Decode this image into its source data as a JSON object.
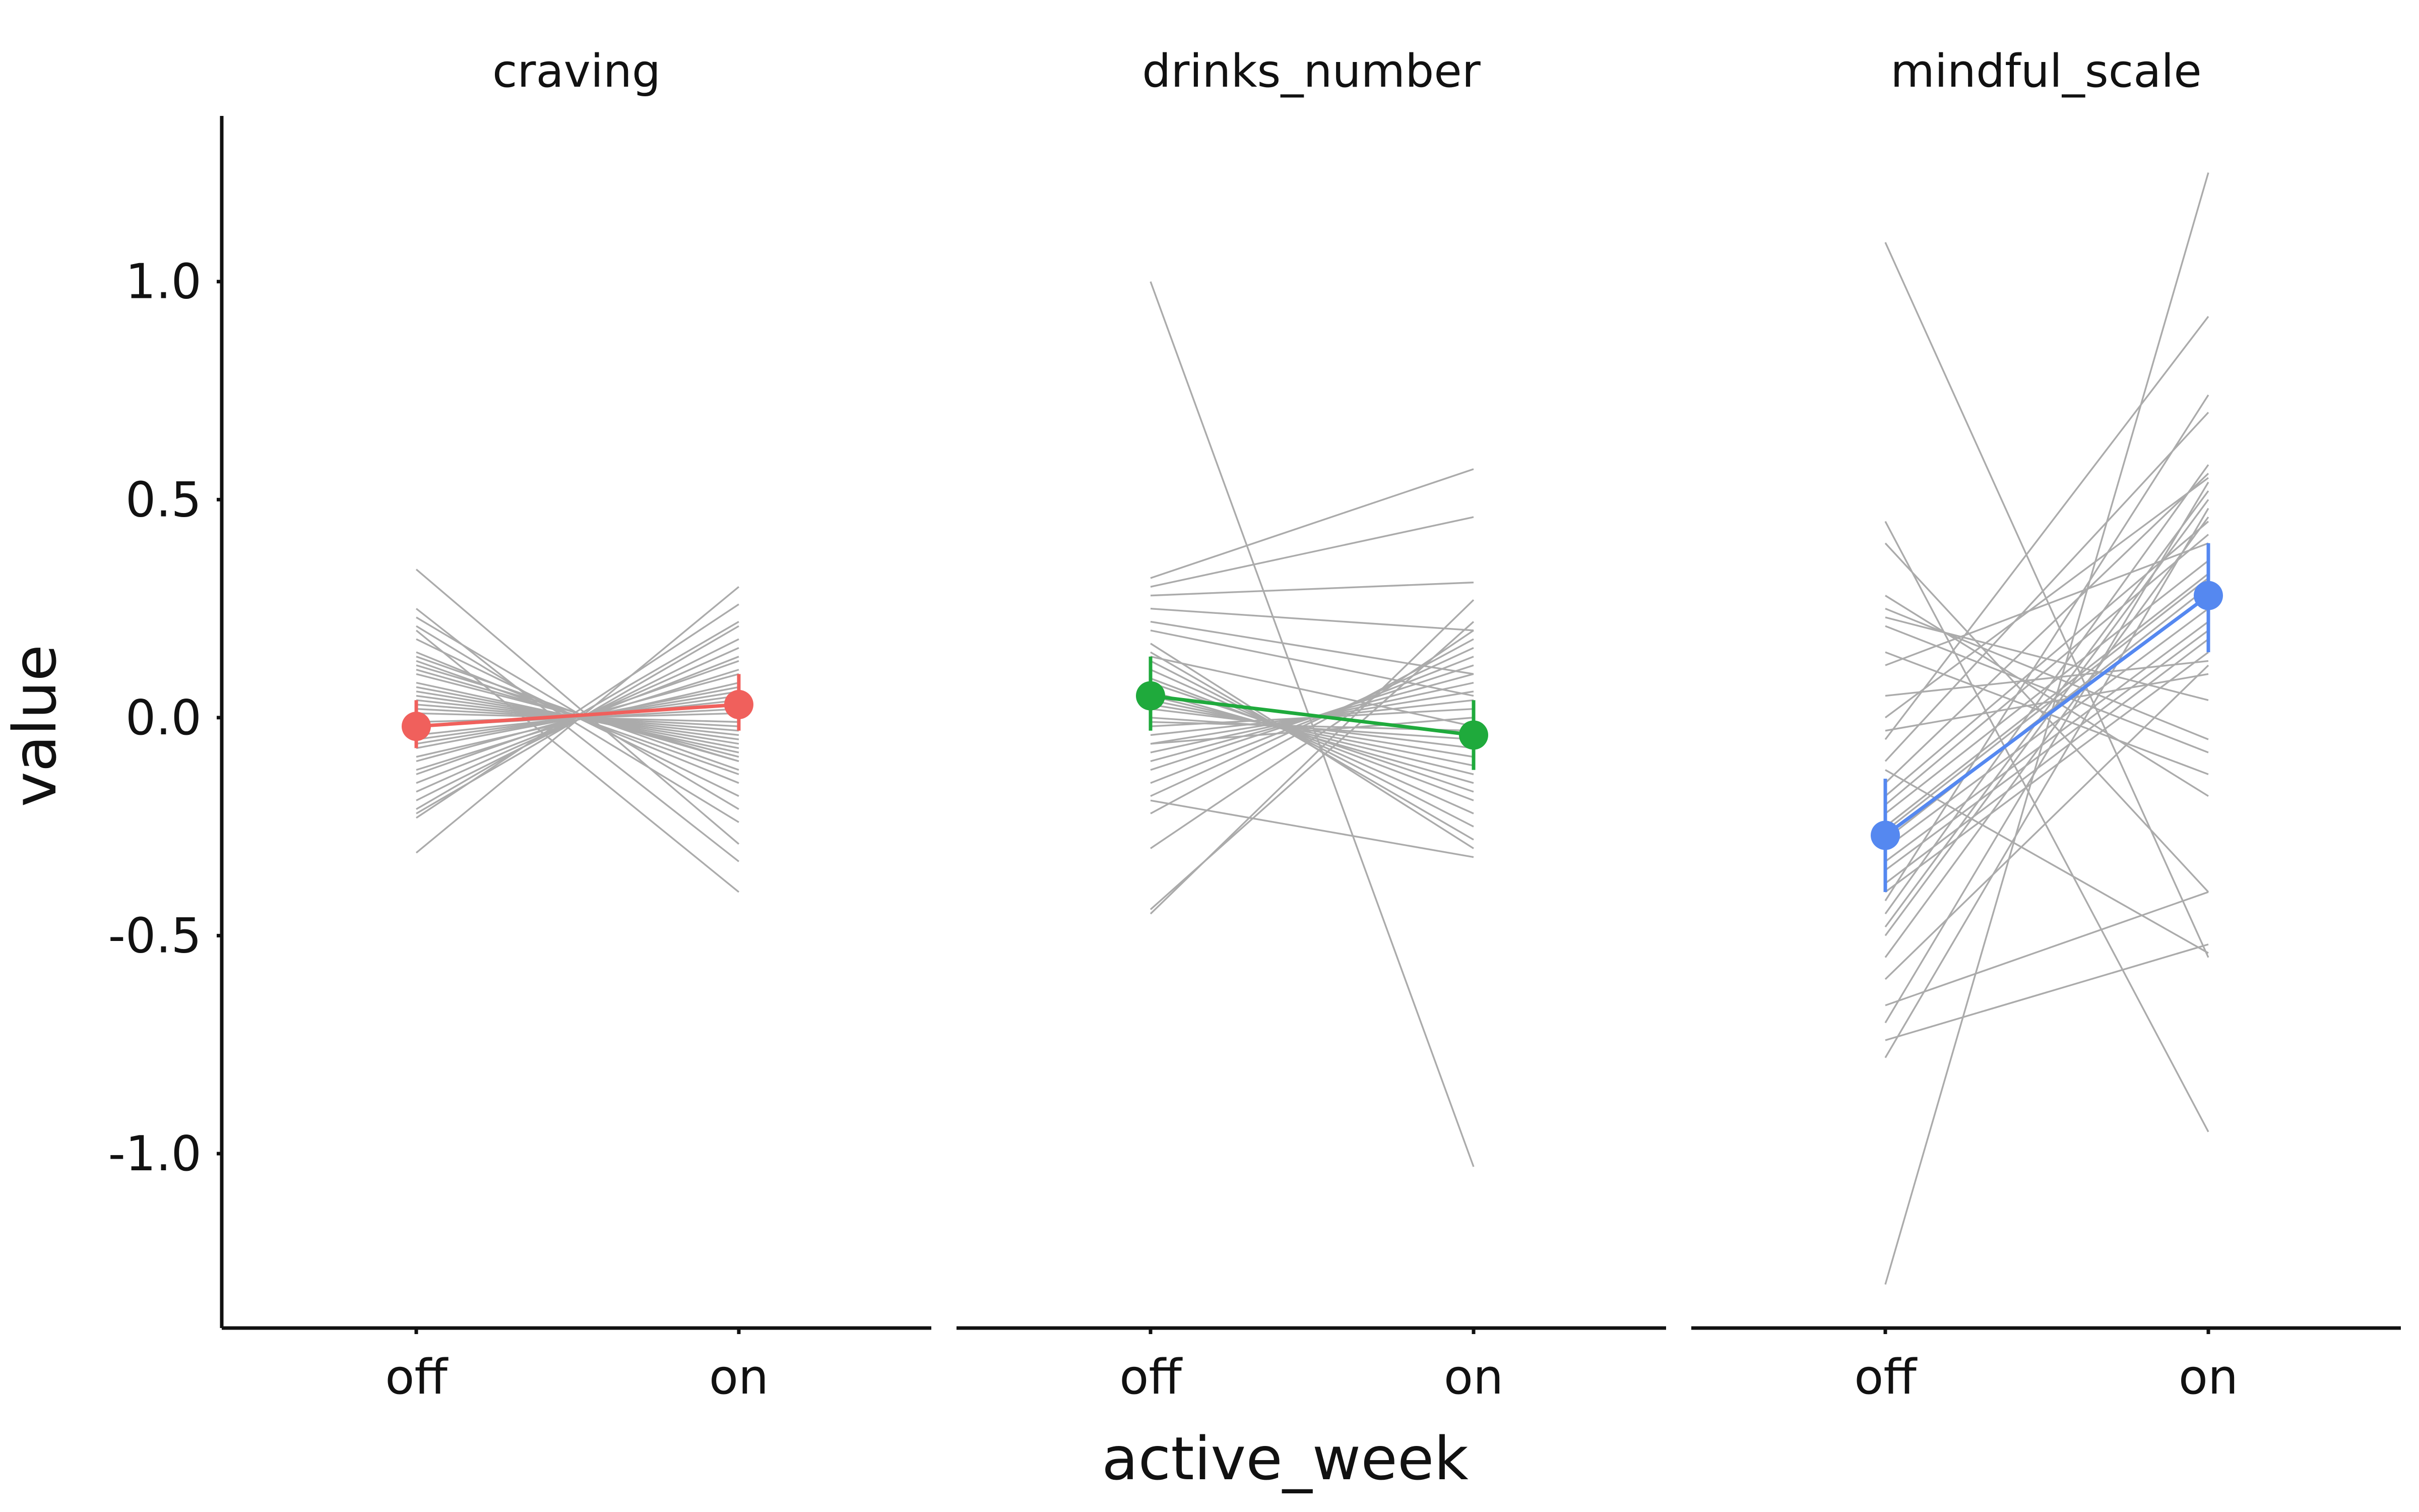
{
  "chart_data": {
    "type": "line",
    "xlabel": "active_week",
    "ylabel": "value",
    "x_categories": [
      "off",
      "on"
    ],
    "ylim": [
      -1.4,
      1.38
    ],
    "yticks": [
      -1.0,
      -0.5,
      0.0,
      0.5,
      1.0
    ],
    "ytick_labels": [
      "-1.0",
      "-0.5",
      "0.0",
      "0.5",
      "1.0"
    ],
    "subject_line_color": "#ababab",
    "facets": [
      {
        "title": "craving",
        "color": "#f0605c",
        "mean": {
          "off": -0.02,
          "on": 0.03
        },
        "ci": {
          "off": [
            -0.07,
            0.04
          ],
          "on": [
            -0.03,
            0.1
          ]
        },
        "subjects": [
          [
            0.34,
            -0.29
          ],
          [
            0.25,
            -0.33
          ],
          [
            0.23,
            -0.21
          ],
          [
            0.21,
            -0.24
          ],
          [
            0.18,
            -0.18
          ],
          [
            0.15,
            -0.15
          ],
          [
            0.14,
            -0.12
          ],
          [
            0.13,
            -0.13
          ],
          [
            0.12,
            -0.1
          ],
          [
            0.11,
            -0.1
          ],
          [
            0.1,
            -0.09
          ],
          [
            0.08,
            -0.08
          ],
          [
            0.07,
            -0.07
          ],
          [
            0.06,
            -0.06
          ],
          [
            0.05,
            -0.05
          ],
          [
            0.04,
            -0.04
          ],
          [
            0.03,
            -0.03
          ],
          [
            0.02,
            -0.02
          ],
          [
            0.01,
            -0.01
          ],
          [
            -0.01,
            0.01
          ],
          [
            -0.02,
            0.02
          ],
          [
            -0.04,
            0.04
          ],
          [
            -0.05,
            0.05
          ],
          [
            -0.06,
            0.06
          ],
          [
            -0.07,
            0.07
          ],
          [
            -0.09,
            0.08
          ],
          [
            -0.1,
            0.1
          ],
          [
            -0.12,
            0.11
          ],
          [
            -0.13,
            0.13
          ],
          [
            -0.15,
            0.14
          ],
          [
            -0.17,
            0.16
          ],
          [
            -0.19,
            0.18
          ],
          [
            -0.21,
            0.22
          ],
          [
            -0.23,
            0.26
          ],
          [
            -0.31,
            0.3
          ],
          [
            -0.22,
            0.21
          ],
          [
            0.2,
            -0.4
          ]
        ]
      },
      {
        "title": "drinks_number",
        "color": "#1faa3c",
        "mean": {
          "off": 0.05,
          "on": -0.04
        },
        "ci": {
          "off": [
            -0.03,
            0.14
          ],
          "on": [
            -0.12,
            0.04
          ]
        },
        "subjects": [
          [
            1.0,
            -1.03
          ],
          [
            0.32,
            0.57
          ],
          [
            0.3,
            0.46
          ],
          [
            0.28,
            0.31
          ],
          [
            0.25,
            0.2
          ],
          [
            0.22,
            0.1
          ],
          [
            0.2,
            0.05
          ],
          [
            0.17,
            -0.3
          ],
          [
            0.15,
            -0.28
          ],
          [
            0.13,
            -0.25
          ],
          [
            0.11,
            -0.22
          ],
          [
            0.09,
            -0.19
          ],
          [
            0.08,
            -0.17
          ],
          [
            0.06,
            -0.15
          ],
          [
            0.05,
            -0.13
          ],
          [
            0.04,
            -0.11
          ],
          [
            0.03,
            -0.09
          ],
          [
            0.02,
            -0.07
          ],
          [
            0.0,
            -0.05
          ],
          [
            -0.01,
            -0.03
          ],
          [
            -0.02,
            0.02
          ],
          [
            -0.04,
            0.04
          ],
          [
            -0.06,
            0.06
          ],
          [
            -0.08,
            0.08
          ],
          [
            -0.1,
            0.1
          ],
          [
            -0.12,
            0.12
          ],
          [
            -0.15,
            0.14
          ],
          [
            -0.18,
            0.16
          ],
          [
            -0.22,
            0.18
          ],
          [
            -0.3,
            0.2
          ],
          [
            -0.44,
            0.22
          ],
          [
            -0.45,
            0.27
          ],
          [
            -0.19,
            -0.32
          ],
          [
            0.14,
            -0.02
          ],
          [
            -0.06,
            0.0
          ]
        ]
      },
      {
        "title": "mindful_scale",
        "color": "#5588f0",
        "mean": {
          "off": -0.27,
          "on": 0.28
        },
        "ci": {
          "off": [
            -0.4,
            -0.14
          ],
          "on": [
            0.15,
            0.4
          ]
        },
        "subjects": [
          [
            1.09,
            -0.55
          ],
          [
            -1.3,
            1.25
          ],
          [
            0.45,
            -0.95
          ],
          [
            0.4,
            -0.4
          ],
          [
            0.28,
            -0.18
          ],
          [
            0.23,
            0.04
          ],
          [
            0.21,
            -0.08
          ],
          [
            0.15,
            -0.13
          ],
          [
            0.05,
            0.13
          ],
          [
            -0.03,
            0.1
          ],
          [
            -0.05,
            0.92
          ],
          [
            -0.1,
            0.7
          ],
          [
            -0.15,
            0.56
          ],
          [
            -0.18,
            0.45
          ],
          [
            -0.2,
            0.42
          ],
          [
            -0.22,
            0.36
          ],
          [
            -0.25,
            0.33
          ],
          [
            -0.28,
            0.3
          ],
          [
            -0.3,
            0.25
          ],
          [
            -0.33,
            0.22
          ],
          [
            -0.35,
            0.2
          ],
          [
            -0.38,
            0.18
          ],
          [
            -0.4,
            0.15
          ],
          [
            -0.42,
            0.74
          ],
          [
            -0.45,
            0.58
          ],
          [
            -0.48,
            0.52
          ],
          [
            -0.5,
            0.5
          ],
          [
            -0.55,
            0.46
          ],
          [
            -0.6,
            0.12
          ],
          [
            -0.66,
            -0.4
          ],
          [
            -0.7,
            0.54
          ],
          [
            -0.74,
            -0.52
          ],
          [
            -0.78,
            0.48
          ],
          [
            0.12,
            0.4
          ],
          [
            0.25,
            -0.05
          ],
          [
            -0.26,
            0.32
          ],
          [
            0.0,
            0.55
          ],
          [
            -0.12,
            -0.54
          ]
        ]
      }
    ]
  }
}
